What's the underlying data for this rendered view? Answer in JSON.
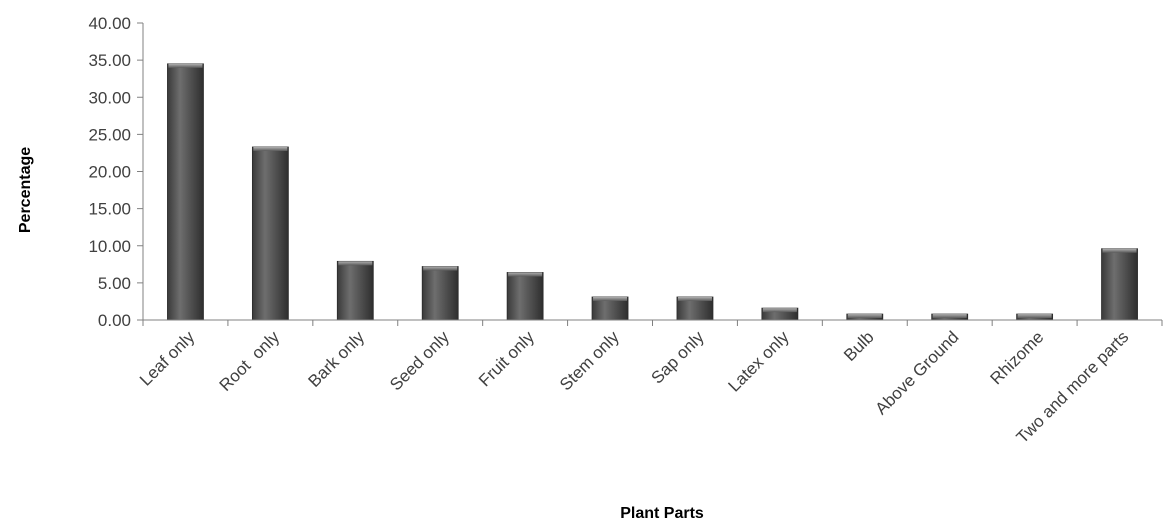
{
  "chart_data": {
    "type": "bar",
    "title": "",
    "xlabel": "Plant Parts",
    "ylabel": "Percentage",
    "ylim": [
      0,
      40
    ],
    "yticks": [
      "0.00",
      "5.00",
      "10.00",
      "15.00",
      "20.00",
      "25.00",
      "30.00",
      "35.00",
      "40.00"
    ],
    "categories": [
      "Leaf only",
      "Root  only",
      "Bark only",
      "Seed only",
      "Fruit only",
      "Stem only",
      "Sap only",
      "Latex only",
      "Bulb",
      "Above Ground",
      "Rhizome",
      "Two and more parts"
    ],
    "values": [
      34.5,
      23.3,
      7.9,
      7.2,
      6.4,
      3.1,
      3.1,
      1.6,
      0.8,
      0.8,
      0.8,
      9.6
    ],
    "grid": false,
    "legend": "none",
    "colors": {
      "bar": "#4a4a4a",
      "bar_highlight": "#8c8c8c",
      "axis": "#808080"
    }
  }
}
